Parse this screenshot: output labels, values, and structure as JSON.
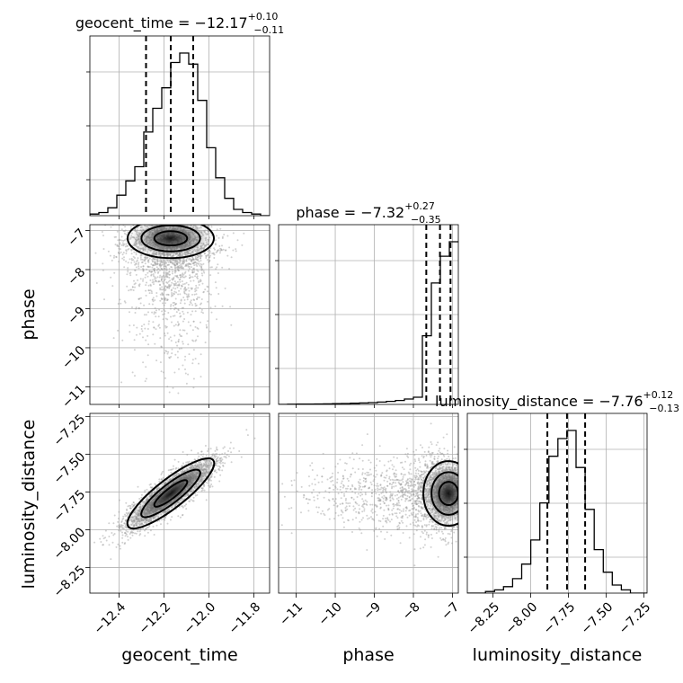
{
  "chart_data": {
    "type": "corner",
    "parameters": [
      "geocent_time",
      "phase",
      "luminosity_distance"
    ],
    "titles": [
      {
        "label": "geocent_time",
        "median": "−12.17",
        "plus": "+0.10",
        "minus": "−0.11"
      },
      {
        "label": "phase",
        "median": "−7.32",
        "plus": "+0.27",
        "minus": "−0.35"
      },
      {
        "label": "luminosity_distance",
        "median": "−7.76",
        "plus": "+0.12",
        "minus": "−0.13"
      }
    ],
    "axis_labels": {
      "geocent_time": "geocent_time",
      "phase": "phase",
      "luminosity_distance": "luminosity_distance"
    },
    "ranges": {
      "geocent_time": [
        -12.53,
        -11.73
      ],
      "phase": [
        -11.45,
        -6.85
      ],
      "luminosity_distance": [
        -8.42,
        -7.23
      ]
    },
    "ticks": {
      "geocent_time": {
        "values": [
          -12.4,
          -12.2,
          -12.0,
          -11.8
        ],
        "labels": [
          "−12.4",
          "−12.2",
          "−12.0",
          "−11.8"
        ]
      },
      "phase": {
        "values": [
          -11,
          -10,
          -9,
          -8,
          -7
        ],
        "labels": [
          "−11",
          "−10",
          "−9",
          "−8",
          "−7"
        ]
      },
      "luminosity_distance": {
        "values": [
          -8.25,
          -8.0,
          -7.75,
          -7.5,
          -7.25
        ],
        "labels": [
          "−8.25",
          "−8.00",
          "−7.75",
          "−7.50",
          "−7.25"
        ]
      }
    },
    "histograms": {
      "geocent_time": {
        "bin_edges": [
          -12.53,
          -12.49,
          -12.45,
          -12.41,
          -12.37,
          -12.33,
          -12.29,
          -12.25,
          -12.21,
          -12.17,
          -12.13,
          -12.09,
          -12.05,
          -12.01,
          -11.97,
          -11.93,
          -11.89,
          -11.85,
          -11.81,
          -11.77,
          -11.73
        ],
        "counts": [
          1,
          2,
          5,
          13,
          22,
          31,
          53,
          68,
          81,
          97,
          103,
          96,
          73,
          43,
          24,
          11,
          4,
          2,
          1,
          0
        ],
        "quantiles": [
          -12.28,
          -12.17,
          -12.07
        ]
      },
      "phase": {
        "bin_edges": [
          -11.45,
          -11.22,
          -10.99,
          -10.76,
          -10.53,
          -10.3,
          -10.07,
          -9.84,
          -9.61,
          -9.38,
          -9.15,
          -8.92,
          -8.69,
          -8.46,
          -8.23,
          -8.0,
          -7.77,
          -7.54,
          -7.31,
          -7.08,
          -6.85
        ],
        "counts": [
          0,
          0.3,
          0.4,
          0.5,
          0.6,
          0.8,
          1,
          1.3,
          1.6,
          2,
          2.5,
          3.2,
          4.2,
          5.5,
          7.5,
          10,
          95,
          168,
          205,
          225
        ],
        "quantiles": [
          -7.67,
          -7.32,
          -7.05
        ]
      },
      "luminosity_distance": {
        "bin_edges": [
          -8.42,
          -8.36,
          -8.3,
          -8.24,
          -8.18,
          -8.12,
          -8.06,
          -8.0,
          -7.94,
          -7.88,
          -7.82,
          -7.76,
          -7.7,
          -7.64,
          -7.58,
          -7.52,
          -7.46,
          -7.4,
          -7.34,
          -7.28,
          -7.22
        ],
        "counts": [
          0,
          0,
          1,
          2,
          4,
          9,
          18,
          33,
          56,
          85,
          96,
          101,
          78,
          52,
          27,
          13,
          5,
          2,
          0,
          0
        ],
        "quantiles": [
          -7.89,
          -7.76,
          -7.64
        ]
      }
    },
    "grid": true
  }
}
